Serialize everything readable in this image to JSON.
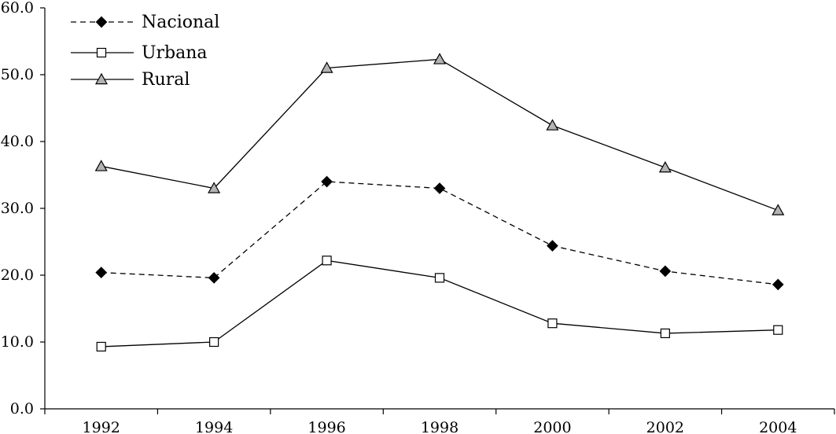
{
  "chart_data": {
    "type": "line",
    "title": "",
    "xlabel": "",
    "ylabel": "",
    "categories": [
      "1992",
      "1994",
      "1996",
      "1998",
      "2000",
      "2002",
      "2004"
    ],
    "ylim": [
      0,
      60
    ],
    "yticks": [
      "0.0",
      "10.0",
      "20.0",
      "30.0",
      "40.0",
      "50.0",
      "60.0"
    ],
    "grid": false,
    "legend_position": "top-left",
    "series": [
      {
        "name": "Nacional",
        "values": [
          20.4,
          19.6,
          34.0,
          33.0,
          24.4,
          20.6,
          18.6
        ],
        "line_style": "dashed",
        "marker": "diamond-filled",
        "marker_color": "#000000"
      },
      {
        "name": "Urbana",
        "values": [
          9.3,
          10.0,
          22.2,
          19.6,
          12.8,
          11.3,
          11.8
        ],
        "line_style": "solid",
        "marker": "square-open",
        "marker_color": "#ffffff"
      },
      {
        "name": "Rural",
        "values": [
          36.3,
          33.0,
          51.0,
          52.3,
          42.4,
          36.1,
          29.7
        ],
        "line_style": "solid",
        "marker": "triangle-filled",
        "marker_color": "#b3b3b3"
      }
    ]
  }
}
